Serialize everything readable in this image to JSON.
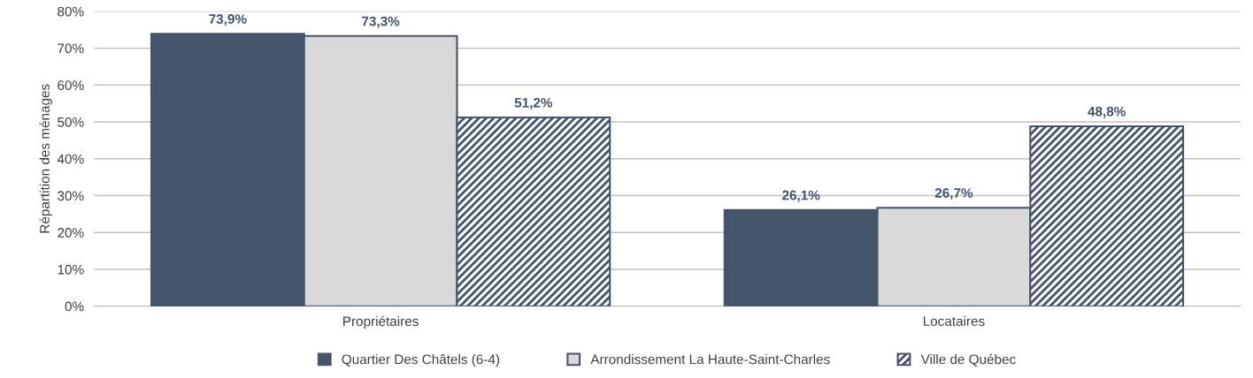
{
  "chart_data": {
    "type": "bar",
    "ylabel": "Répartition des ménages",
    "categories": [
      "Propriétaires",
      "Locataires"
    ],
    "series": [
      {
        "name": "Quartier Des Châtels (6-4)",
        "color": "#44546a",
        "values": [
          73.9,
          26.1
        ],
        "value_labels": [
          "73,9%",
          "26,1%"
        ]
      },
      {
        "name": "Arrondissement La Haute-Saint-Charles",
        "color": "#d9d9d9",
        "values": [
          73.3,
          26.7
        ],
        "value_labels": [
          "73,3%",
          "26,7%"
        ]
      },
      {
        "name": "Ville de Québec",
        "color": "#44546a",
        "values": [
          51.2,
          48.8
        ],
        "value_labels": [
          "51,2%",
          "48,8%"
        ]
      }
    ],
    "ylim": [
      0,
      80
    ],
    "yticks": [
      {
        "value": 0,
        "label": "0%"
      },
      {
        "value": 10,
        "label": "10%"
      },
      {
        "value": 20,
        "label": "20%"
      },
      {
        "value": 30,
        "label": "30%"
      },
      {
        "value": 40,
        "label": "40%"
      },
      {
        "value": 50,
        "label": "50%"
      },
      {
        "value": 60,
        "label": "60%"
      },
      {
        "value": 70,
        "label": "70%"
      },
      {
        "value": 80,
        "label": "80%"
      }
    ],
    "grid": "y",
    "legend": "bottom"
  }
}
